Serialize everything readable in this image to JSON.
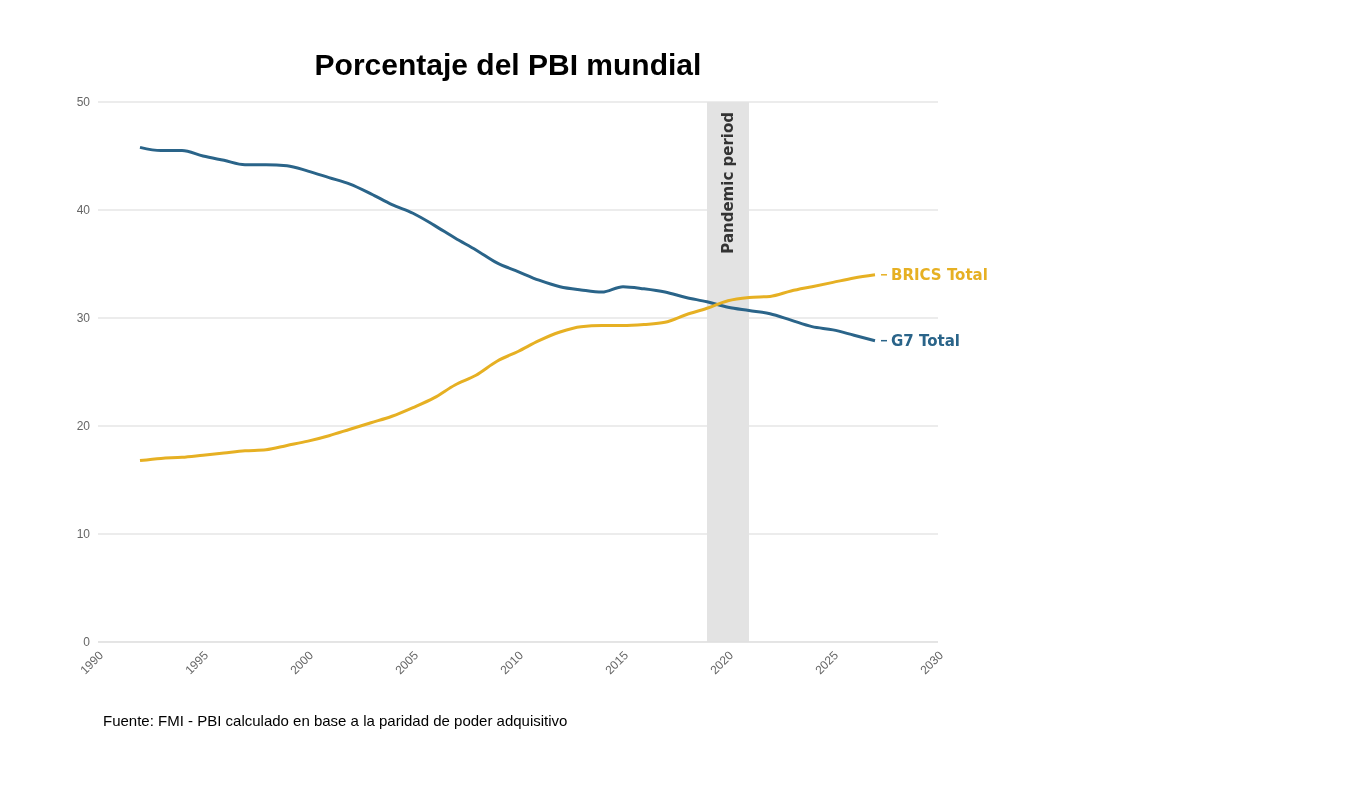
{
  "chart_data": {
    "type": "line",
    "title": "Porcentaje del PBI mundial",
    "x": [
      1992,
      1993,
      1994,
      1995,
      1996,
      1997,
      1998,
      1999,
      2000,
      2001,
      2002,
      2003,
      2004,
      2005,
      2006,
      2007,
      2008,
      2009,
      2010,
      2011,
      2012,
      2013,
      2014,
      2015,
      2016,
      2017,
      2018,
      2019,
      2020,
      2021,
      2022,
      2023,
      2024,
      2025,
      2026,
      2027
    ],
    "series": [
      {
        "name": "G7 Total",
        "color": "#2a6489",
        "values": [
          45.8,
          45.5,
          45.5,
          45.0,
          44.6,
          44.2,
          44.2,
          44.1,
          43.6,
          43.0,
          42.4,
          41.5,
          40.5,
          39.7,
          38.6,
          37.4,
          36.3,
          35.1,
          34.3,
          33.5,
          32.9,
          32.6,
          32.4,
          32.9,
          32.7,
          32.4,
          31.9,
          31.5,
          31.0,
          30.7,
          30.4,
          29.8,
          29.2,
          28.9,
          28.4,
          27.9
        ]
      },
      {
        "name": "BRICS Total",
        "color": "#e6b023",
        "values": [
          16.8,
          17.0,
          17.1,
          17.3,
          17.5,
          17.7,
          17.8,
          18.2,
          18.6,
          19.1,
          19.7,
          20.3,
          20.9,
          21.7,
          22.6,
          23.8,
          24.7,
          26.0,
          26.9,
          27.9,
          28.7,
          29.2,
          29.3,
          29.3,
          29.4,
          29.6,
          30.3,
          30.9,
          31.6,
          31.9,
          32.0,
          32.5,
          32.9,
          33.3,
          33.7,
          34.0
        ]
      }
    ],
    "xlim": [
      1990,
      2030
    ],
    "xticks": [
      1990,
      1995,
      2000,
      2005,
      2010,
      2015,
      2020,
      2025,
      2030
    ],
    "ylim": [
      0,
      50
    ],
    "yticks": [
      0,
      10,
      20,
      30,
      40,
      50
    ],
    "grid": "y",
    "legend": "right",
    "marker": "none",
    "line_style": "solid",
    "bands": [
      {
        "axis": "x",
        "from": 2019,
        "to": 2021,
        "label": "Pandemic period",
        "color": "#e3e3e3"
      }
    ],
    "annotations": [
      "Fuente: FMI - PBI calculado en base a la paridad de poder adquisitivo"
    ]
  }
}
